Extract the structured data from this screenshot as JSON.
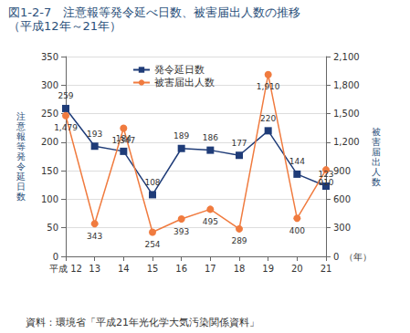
{
  "chart_data": {
    "type": "line",
    "title": "図1-2-7　注意報等発令延べ日数、被害届出人数の推移",
    "subtitle": "（平成12年～21年）",
    "source": "資料：環境省「平成21年光化学大気汚染関係資料」",
    "xlabel": "（年）",
    "ylabel": "注意報等発令延日数",
    "y2label": "被害届出人数",
    "categories": [
      "平成 12",
      "13",
      "14",
      "15",
      "16",
      "17",
      "18",
      "19",
      "20",
      "21"
    ],
    "series": [
      {
        "name": "発令延日数",
        "color": "#1f3c78",
        "marker": "square",
        "axis": "y",
        "values": [
          259,
          193,
          184,
          108,
          189,
          186,
          177,
          220,
          144,
          123
        ]
      },
      {
        "name": "被害届出人数",
        "color": "#f07b3f",
        "marker": "circle",
        "axis": "y2",
        "values": [
          1479,
          343,
          1347,
          254,
          393,
          495,
          289,
          1910,
          400,
          910
        ],
        "value_labels": [
          "1,479",
          "343",
          "1,347",
          "254",
          "393",
          "495",
          "289",
          "1,910",
          "400",
          "910"
        ]
      }
    ],
    "ylim": [
      0,
      350
    ],
    "yticks": [
      0,
      50,
      100,
      150,
      200,
      250,
      300,
      350
    ],
    "y2lim": [
      0,
      2100
    ],
    "y2ticks": [
      0,
      300,
      600,
      900,
      {
        "value": 1200,
        "label": "1,200"
      },
      {
        "value": 1500,
        "label": "1,500"
      },
      {
        "value": 1800,
        "label": "1,800"
      },
      {
        "value": 2100,
        "label": "2,100"
      }
    ],
    "grid": true,
    "legend": "top",
    "data_labels": true
  }
}
